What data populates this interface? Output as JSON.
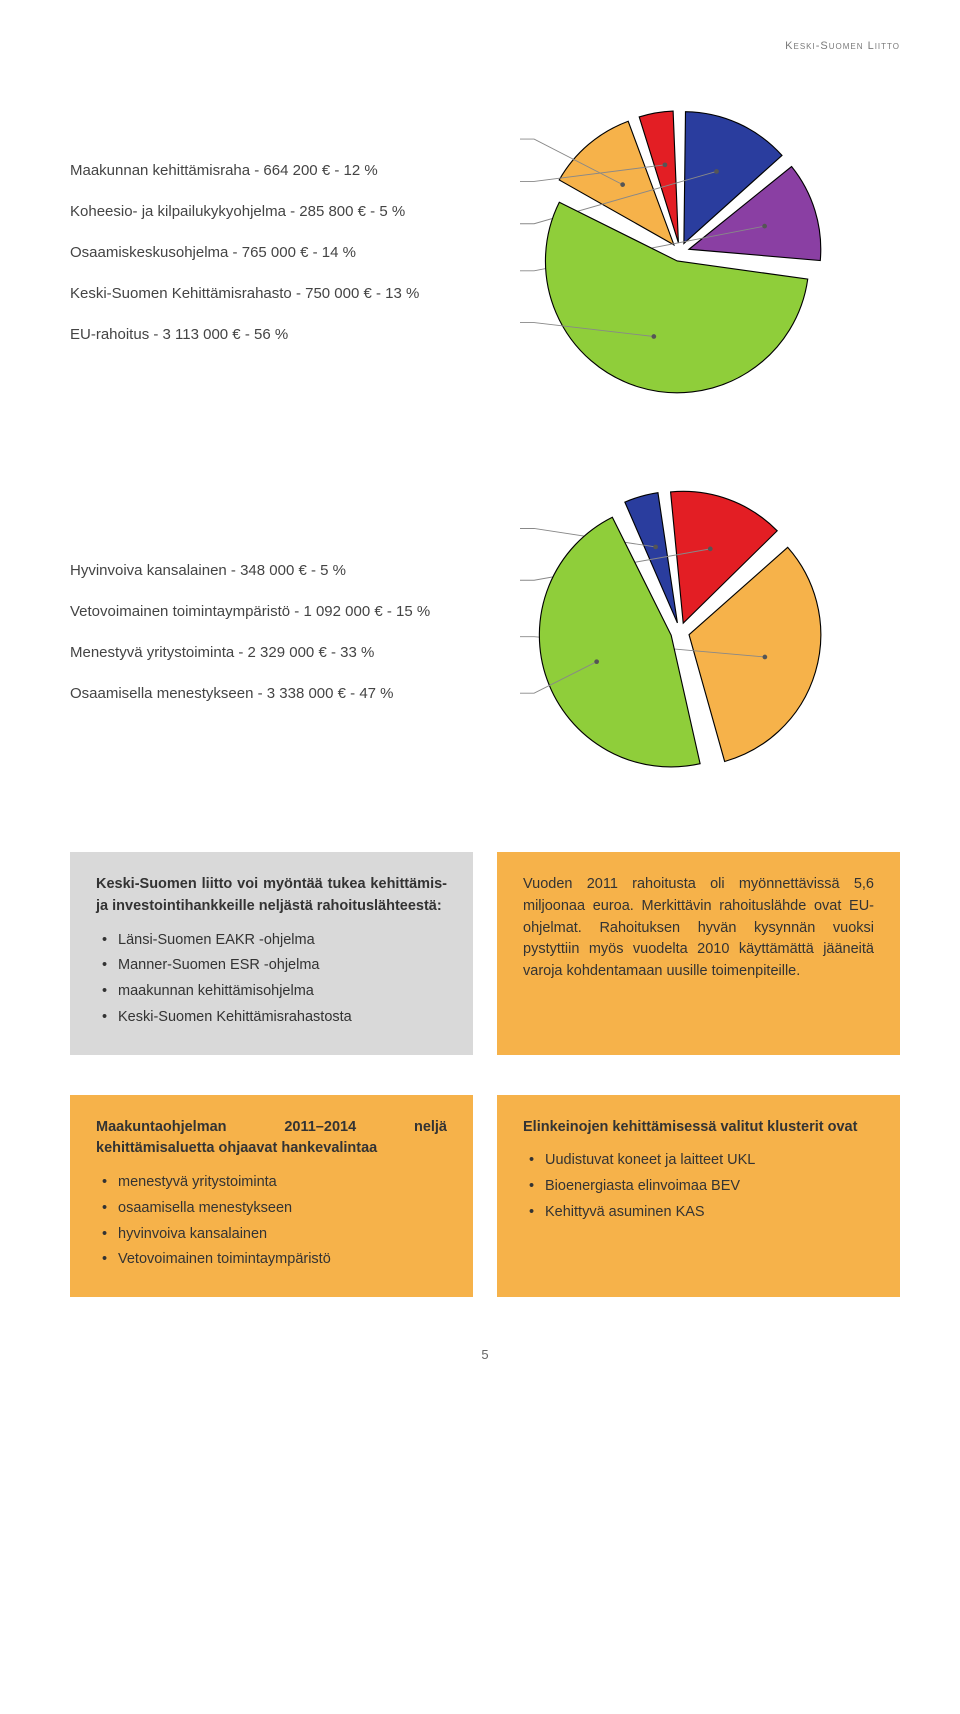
{
  "header": "Keski-Suomen Liitto",
  "page_number": "5",
  "chart1": {
    "type": "pie",
    "labels": [
      "Maakunnan kehittämisraha - 664 200 € - 12 %",
      "Koheesio- ja kilpailukykyohjelma - 285 800 € - 5 %",
      "Osaamiskeskusohjelma - 765 000 € - 14 %",
      "Keski-Suomen Kehittämisrahasto - 750 000 € - 13 %",
      "EU-rahoitus - 3 113 000 € - 56 %"
    ],
    "values": [
      12,
      5,
      14,
      13,
      56
    ],
    "colors": [
      "#f6b24a",
      "#e31e24",
      "#2a3d9e",
      "#8a3fa3",
      "#8fce3a"
    ],
    "stroke": "#000000",
    "background": "#ffffff"
  },
  "chart2": {
    "type": "pie",
    "labels": [
      "Hyvinvoiva kansalainen - 348 000 € - 5 %",
      "Vetovoimainen toimintaympäristö - 1 092 000 € - 15 %",
      "Menestyvä yritystoiminta - 2 329 000 € - 33 %",
      "Osaamisella menestykseen - 3 338 000 € - 47 %"
    ],
    "values": [
      5,
      15,
      33,
      47
    ],
    "colors": [
      "#2a3d9e",
      "#e31e24",
      "#f6b24a",
      "#8fce3a"
    ],
    "stroke": "#000000",
    "background": "#ffffff"
  },
  "box_gray": {
    "lead": "Keski-Suomen liitto voi myöntää tukea kehittämis- ja investointihankkeille neljästä rahoituslähteestä:",
    "items": [
      "Länsi-Suomen EAKR -ohjelma",
      "Manner-Suomen ESR -ohjelma",
      "maakunnan kehittämisohjelma",
      "Keski-Suomen Kehittämisrahastosta"
    ]
  },
  "box_orange_top": {
    "text": "Vuoden 2011 rahoitusta oli myönnettävissä 5,6 miljoonaa euroa. Merkittävin rahoituslähde ovat EU-ohjelmat. Rahoituksen hyvän kysynnän vuoksi pystyttiin myös vuodelta 2010 käyttämättä jääneitä varoja kohdentamaan uusille toimenpiteille."
  },
  "box_orange_left": {
    "lead": "Maakuntaohjelman 2011–2014 neljä kehittämisaluetta ohjaavat hankevalintaa",
    "items": [
      "menestyvä yritystoiminta",
      "osaamisella menestykseen",
      "hyvinvoiva kansalainen",
      "Vetovoimainen toimintaympäristö"
    ]
  },
  "box_orange_right": {
    "lead": "Elinkeinojen kehittämisessä valitut klusterit ovat",
    "items": [
      "Uudistuvat koneet ja laitteet UKL",
      "Bioenergiasta elinvoimaa BEV",
      "Kehittyvä asuminen KAS"
    ]
  }
}
